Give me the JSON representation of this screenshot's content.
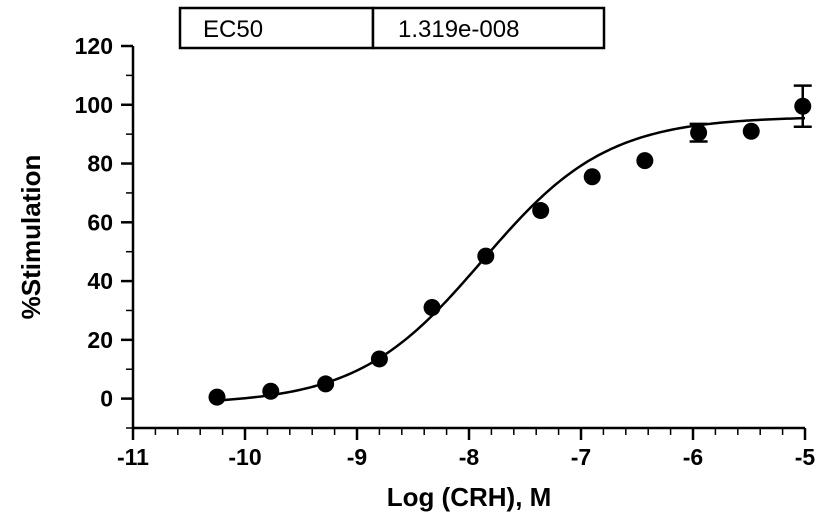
{
  "chart_data": {
    "type": "scatter",
    "xlabel": "Log (CRH), M",
    "ylabel": "%Stimulation",
    "xlim": [
      -11,
      -5
    ],
    "ylim": [
      -10,
      120
    ],
    "x_ticks": [
      -11,
      -10,
      -9,
      -8,
      -7,
      -6,
      -5
    ],
    "y_ticks": [
      0,
      20,
      40,
      60,
      80,
      100,
      120
    ],
    "series": [
      {
        "x": [
          -10.25,
          -9.77,
          -9.28,
          -8.8,
          -8.33,
          -7.85,
          -7.36,
          -6.9,
          -6.43,
          -5.95,
          -5.48,
          -5.02
        ],
        "y": [
          0.5,
          2.5,
          5,
          13.5,
          31,
          48.5,
          64,
          75.5,
          81,
          90.5,
          91,
          99.5
        ],
        "error": [
          0,
          0,
          0,
          0,
          0,
          0,
          0,
          0,
          0,
          3,
          0,
          7
        ]
      }
    ],
    "fit": {
      "model": "sigmoidal dose-response",
      "bottom": -2,
      "top": 96,
      "logEC50": -7.88,
      "hill": 0.78,
      "x_range": [
        -10.25,
        -5.0
      ]
    },
    "results_table": {
      "label": "EC50",
      "value": "1.319e-008"
    }
  }
}
